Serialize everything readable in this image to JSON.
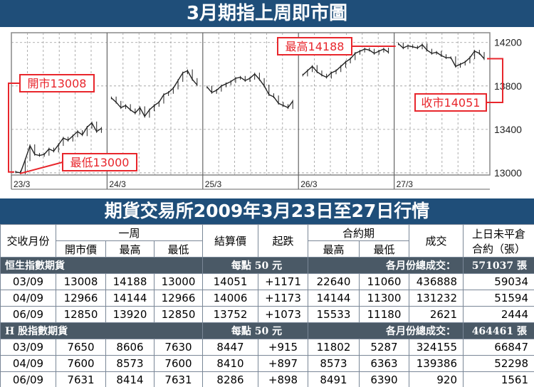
{
  "title": "3月期指上周即市圖",
  "chart_data": {
    "type": "candlestick-line",
    "x_tick_labels": [
      "23/3",
      "24/3",
      "25/3",
      "26/3",
      "27/3"
    ],
    "y_ticks": [
      13000,
      13400,
      13800,
      14200
    ],
    "ylim": [
      12980,
      14290
    ],
    "grid": true,
    "annotations": {
      "open": {
        "label": "開市13008",
        "value": 13008
      },
      "low": {
        "label": "最低13000",
        "value": 13000
      },
      "high": {
        "label": "最高14188",
        "value": 14188
      },
      "close": {
        "label": "收市14051",
        "value": 14051
      }
    },
    "series": [
      {
        "day": "23/3",
        "values": [
          13008,
          13000,
          13120,
          13250,
          13170,
          13160,
          13170,
          13220,
          13200,
          13260,
          13320,
          13300,
          13340,
          13380,
          13350,
          13420,
          13460,
          13380,
          13410
        ]
      },
      {
        "day": "24/3",
        "values": [
          13690,
          13650,
          13600,
          13620,
          13580,
          13550,
          13600,
          13520,
          13580,
          13620,
          13650,
          13720,
          13740,
          13780,
          13850,
          13920,
          13940,
          13860,
          13810
        ]
      },
      {
        "day": "25/3",
        "values": [
          13790,
          13740,
          13760,
          13800,
          13820,
          13840,
          13870,
          13880,
          13850,
          13870,
          13910,
          13860,
          13800,
          13720,
          13700,
          13640,
          13620,
          13600,
          13660
        ]
      },
      {
        "day": "26/3",
        "values": [
          13900,
          13940,
          13980,
          13930,
          13900,
          13880,
          13920,
          13940,
          13980,
          14020,
          14050,
          14100,
          14120,
          14140,
          14130,
          14100,
          14120,
          14140,
          14110
        ]
      },
      {
        "day": "27/3",
        "values": [
          14188,
          14150,
          14170,
          14160,
          14150,
          14180,
          14130,
          14100,
          14110,
          14080,
          14060,
          14060,
          13980,
          14000,
          14020,
          14060,
          14120,
          14100,
          14051
        ]
      }
    ]
  },
  "table_title": "期貨交易所2009年3月23日至27日行情",
  "table": {
    "headers": {
      "month": "交收月份",
      "week": "一周",
      "open": "開市價",
      "high": "最高",
      "low": "最低",
      "settle": "結算價",
      "change": "起跌",
      "contract_period": "合約期",
      "cp_high": "最高",
      "cp_low": "最低",
      "volume": "成交",
      "oi_line1": "上日未平倉",
      "oi_line2": "合約（張）"
    },
    "sections": [
      {
        "name": "恒生指數期貨",
        "unit": "每點 50 元",
        "total_label": "各月份總成交：",
        "total_value": "571037 張",
        "rows": [
          [
            "03/09",
            "13008",
            "14188",
            "13000",
            "14051",
            "+1171",
            "22640",
            "11060",
            "436888",
            "59034"
          ],
          [
            "04/09",
            "12966",
            "14144",
            "12966",
            "14006",
            "+1173",
            "14144",
            "11300",
            "131232",
            "51594"
          ],
          [
            "06/09",
            "12850",
            "13920",
            "12850",
            "13752",
            "+1073",
            "15533",
            "11180",
            "2621",
            "2444"
          ]
        ]
      },
      {
        "name": "H 股指數期貨",
        "unit": "每點 50 元",
        "total_label": "各月份總成交：",
        "total_value": "464461 張",
        "rows": [
          [
            "03/09",
            "7650",
            "8606",
            "7630",
            "8447",
            "+915",
            "11802",
            "5287",
            "324155",
            "66847"
          ],
          [
            "04/09",
            "7600",
            "8573",
            "7600",
            "8410",
            "+897",
            "8573",
            "6363",
            "139386",
            "52298"
          ],
          [
            "06/09",
            "7631",
            "8414",
            "7631",
            "8286",
            "+898",
            "8491",
            "6390",
            "920",
            "1561"
          ]
        ]
      }
    ]
  },
  "colors": {
    "band": "#1f4e79",
    "section_band": "#4a5966",
    "annotation": "#e8262c",
    "price_line": "#222222"
  }
}
